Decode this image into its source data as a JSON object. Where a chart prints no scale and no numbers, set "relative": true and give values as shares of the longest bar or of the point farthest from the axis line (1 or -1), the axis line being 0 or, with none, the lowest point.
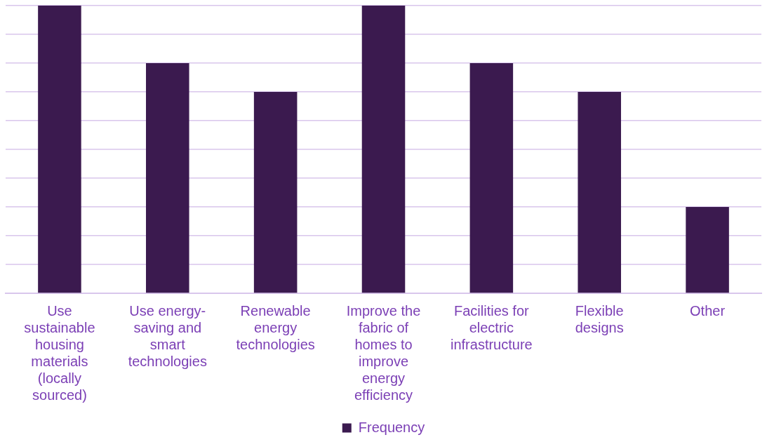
{
  "chart_data": {
    "type": "bar",
    "relative": true,
    "categories": [
      "Use sustainable housing materials (locally sourced)",
      "Use energy-saving and smart technologies",
      "Renewable energy technologies",
      "Improve the fabric of homes to improve energy efficiency",
      "Facilities for electric infrastructure",
      "Flexible designs",
      "Other"
    ],
    "series": [
      {
        "name": "Frequency",
        "color": "#3b1a4f",
        "values": [
          1,
          0.8,
          0.7,
          1,
          0.8,
          0.7,
          0.3
        ]
      }
    ],
    "grid": "y",
    "legend": "bottom"
  }
}
